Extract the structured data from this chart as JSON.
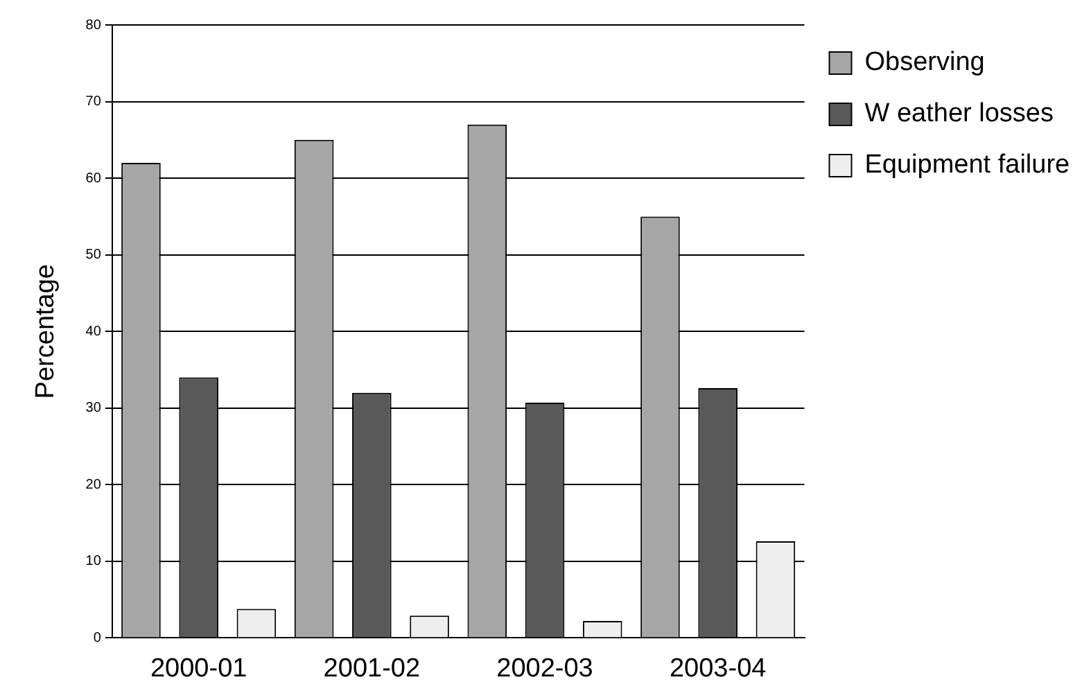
{
  "chart_data": {
    "type": "bar",
    "ylabel": "Percentage",
    "categories": [
      "2000-01",
      "2001-02",
      "2002-03",
      "2003-04"
    ],
    "series": [
      {
        "name": "Observing",
        "color": "#a6a6a6",
        "values": [
          62,
          65,
          67,
          55
        ]
      },
      {
        "name": "W eather losses",
        "color": "#595959",
        "values": [
          34,
          32,
          30.7,
          32.6
        ]
      },
      {
        "name": "Equipment failure",
        "color": "#eeeeee",
        "values": [
          3.8,
          2.9,
          2.2,
          12.6
        ]
      }
    ],
    "ylim": [
      0,
      80
    ],
    "yticks": [
      0,
      10,
      20,
      30,
      40,
      50,
      60,
      70,
      80
    ],
    "grid": "y",
    "legend": "top right"
  }
}
